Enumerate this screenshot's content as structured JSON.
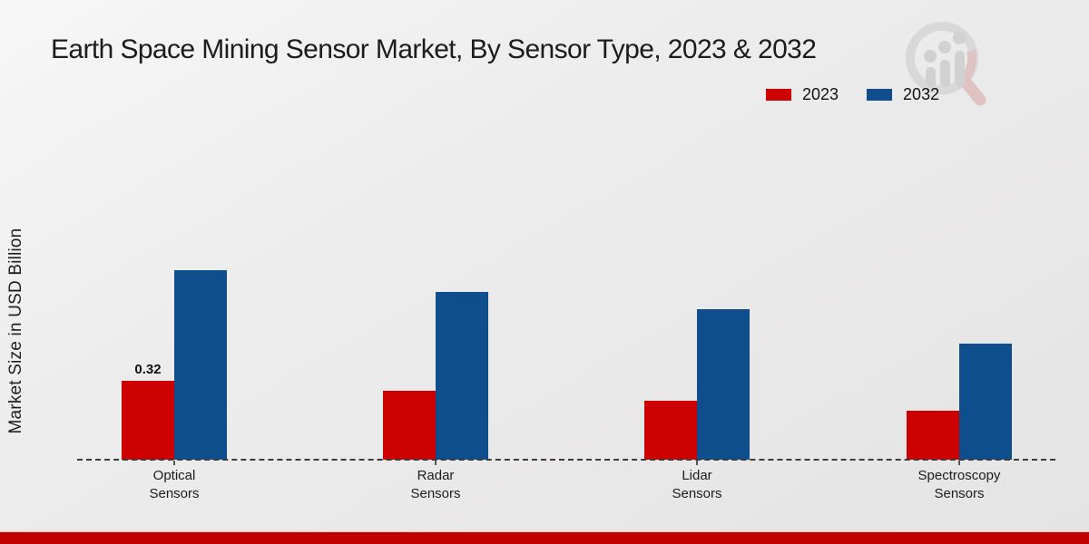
{
  "chart_data": {
    "type": "bar",
    "title": "Earth Space Mining Sensor Market, By Sensor Type, 2023 & 2032",
    "xlabel": "",
    "ylabel": "Market Size in USD Billion",
    "categories": [
      "Optical Sensors",
      "Radar Sensors",
      "Lidar Sensors",
      "Spectroscopy Sensors"
    ],
    "series": [
      {
        "name": "2023",
        "color": "#cc0000",
        "values": [
          0.32,
          0.28,
          0.24,
          0.2
        ]
      },
      {
        "name": "2032",
        "color": "#0f4e8c",
        "values": [
          0.77,
          0.68,
          0.61,
          0.47
        ]
      }
    ],
    "bar_labels": [
      {
        "series": "2023",
        "category": "Optical Sensors",
        "text": "0.32"
      }
    ],
    "ylim": [
      0,
      0.85
    ],
    "grid": false,
    "legend_position": "top-right",
    "baseline_style": "dashed"
  },
  "branding": {
    "footer_bar_color": "#c10000",
    "watermark_icon": "magnifier-growth-chart-logo"
  }
}
